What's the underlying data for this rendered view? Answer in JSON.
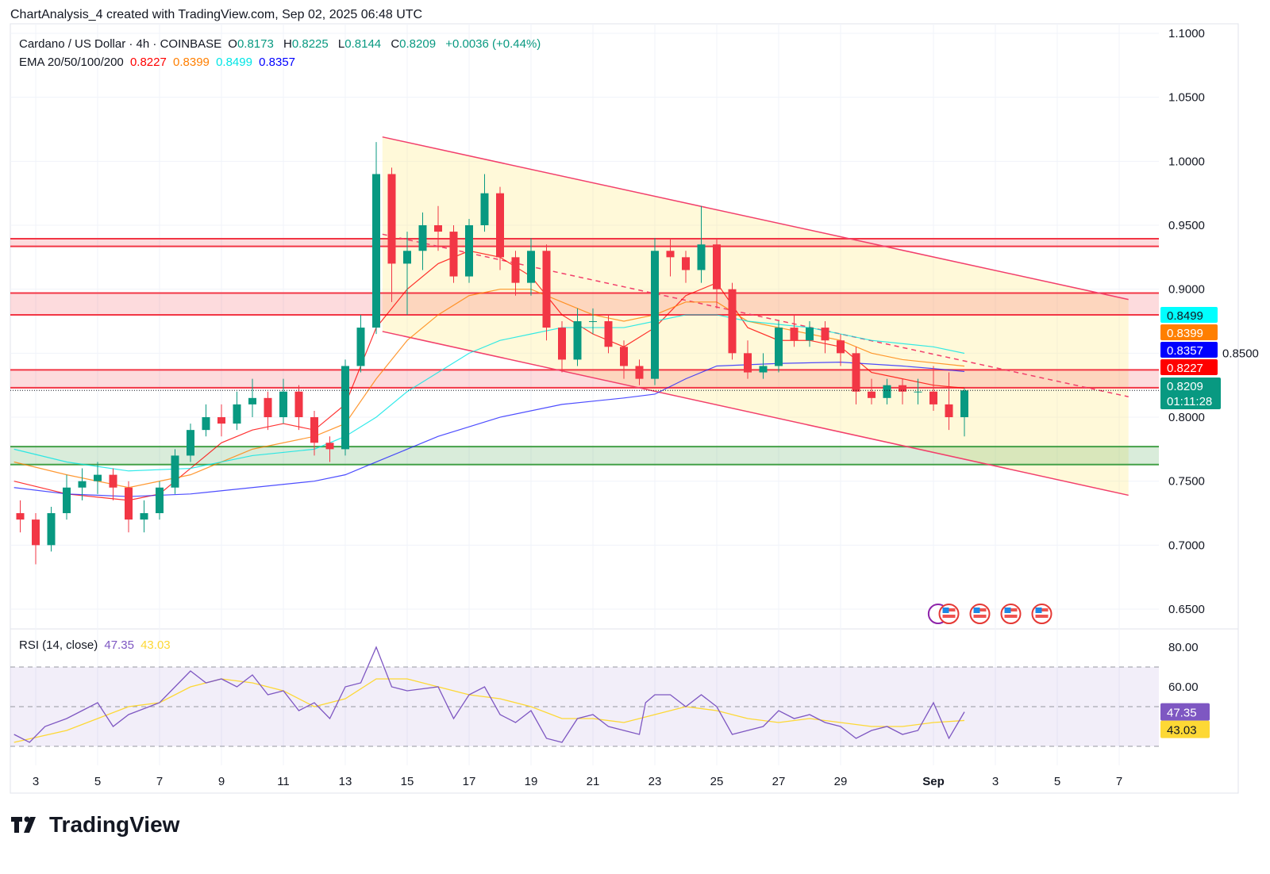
{
  "header": {
    "attribution": "ChartAnalysis_4 created with TradingView.com, Sep 02, 2025 06:48 UTC"
  },
  "legend": {
    "symbol": "Cardano / US Dollar · 4h · COINBASE",
    "o_label": "O",
    "o": "0.8173",
    "h_label": "H",
    "h": "0.8225",
    "l_label": "L",
    "l": "0.8144",
    "c_label": "C",
    "c": "0.8209",
    "change": "+0.0036 (+0.44%)",
    "ema_label": "EMA 20/50/100/200",
    "ema20": "0.8227",
    "ema50": "0.8399",
    "ema100": "0.8499",
    "ema200": "0.8357",
    "rsi_label": "RSI (14, close)",
    "rsi": "47.35",
    "rsi_ma": "43.03"
  },
  "colors": {
    "up": "#089981",
    "down": "#f23645",
    "ema20": "#ff0000",
    "ema50": "#ff7f00",
    "ema100": "#00ffff",
    "ema200": "#0000ff",
    "rsi": "#7e57c2",
    "rsi_ma": "#fdd835",
    "channel": "#f23f6b",
    "zone_red": "#f23645",
    "zone_green": "#43a047"
  },
  "branding": {
    "logo": "TradingView"
  },
  "chart_data": {
    "type": "candlestick",
    "title": "Cardano / US Dollar · 4h · COINBASE",
    "x_unit": "day of Aug 2025 (32 = Sep 1), 12h samples",
    "price_axis": {
      "ticks": [
        "1.1000",
        "1.0500",
        "1.0000",
        "0.9500",
        "0.9000",
        "0.8500",
        "0.8000",
        "0.7500",
        "0.7000",
        "0.6500"
      ],
      "range": [
        0.65,
        1.1
      ]
    },
    "time_axis": {
      "ticks": [
        {
          "d": 3,
          "label": "3"
        },
        {
          "d": 5,
          "label": "5"
        },
        {
          "d": 7,
          "label": "7"
        },
        {
          "d": 9,
          "label": "9"
        },
        {
          "d": 11,
          "label": "11"
        },
        {
          "d": 13,
          "label": "13"
        },
        {
          "d": 15,
          "label": "15"
        },
        {
          "d": 17,
          "label": "17"
        },
        {
          "d": 19,
          "label": "19"
        },
        {
          "d": 21,
          "label": "21"
        },
        {
          "d": 23,
          "label": "23"
        },
        {
          "d": 25,
          "label": "25"
        },
        {
          "d": 27,
          "label": "27"
        },
        {
          "d": 29,
          "label": "29"
        },
        {
          "d": 32,
          "label": "Sep"
        },
        {
          "d": 34,
          "label": "3"
        },
        {
          "d": 36,
          "label": "5"
        },
        {
          "d": 38,
          "label": "7"
        }
      ]
    },
    "candles": {
      "start_day": 2.5,
      "step_days": 0.5,
      "open": [
        0.725,
        0.72,
        0.7,
        0.725,
        0.745,
        0.75,
        0.755,
        0.745,
        0.72,
        0.725,
        0.745,
        0.77,
        0.79,
        0.8,
        0.795,
        0.81,
        0.815,
        0.8,
        0.82,
        0.8,
        0.78,
        0.775,
        0.84,
        0.87,
        0.99,
        0.92,
        0.93,
        0.95,
        0.945,
        0.91,
        0.95,
        0.975,
        0.925,
        0.905,
        0.93,
        0.87,
        0.845,
        0.875,
        0.875,
        0.855,
        0.84,
        0.83,
        0.93,
        0.925,
        0.915,
        0.935,
        0.9,
        0.85,
        0.835,
        0.84,
        0.87,
        0.86,
        0.87,
        0.86,
        0.85,
        0.82,
        0.815,
        0.825,
        0.82,
        0.82,
        0.81,
        0.8
      ],
      "high": [
        0.735,
        0.725,
        0.73,
        0.755,
        0.76,
        0.765,
        0.76,
        0.75,
        0.735,
        0.75,
        0.775,
        0.795,
        0.81,
        0.81,
        0.82,
        0.83,
        0.82,
        0.83,
        0.825,
        0.805,
        0.785,
        0.845,
        0.88,
        1.015,
        0.995,
        0.945,
        0.96,
        0.965,
        0.95,
        0.955,
        0.99,
        0.98,
        0.93,
        0.94,
        0.935,
        0.875,
        0.885,
        0.885,
        0.88,
        0.86,
        0.845,
        0.94,
        0.94,
        0.93,
        0.965,
        0.94,
        0.905,
        0.86,
        0.85,
        0.875,
        0.88,
        0.875,
        0.875,
        0.865,
        0.855,
        0.83,
        0.83,
        0.83,
        0.83,
        0.84,
        0.835,
        0.8225
      ],
      "low": [
        0.71,
        0.685,
        0.695,
        0.72,
        0.735,
        0.74,
        0.735,
        0.71,
        0.71,
        0.72,
        0.74,
        0.765,
        0.785,
        0.785,
        0.79,
        0.8,
        0.79,
        0.795,
        0.79,
        0.77,
        0.765,
        0.77,
        0.835,
        0.865,
        0.89,
        0.88,
        0.915,
        0.93,
        0.905,
        0.905,
        0.945,
        0.915,
        0.895,
        0.895,
        0.86,
        0.835,
        0.84,
        0.865,
        0.85,
        0.83,
        0.825,
        0.825,
        0.91,
        0.905,
        0.905,
        0.885,
        0.845,
        0.83,
        0.83,
        0.835,
        0.855,
        0.855,
        0.85,
        0.84,
        0.81,
        0.81,
        0.81,
        0.81,
        0.81,
        0.805,
        0.79,
        0.785
      ],
      "close": [
        0.72,
        0.7,
        0.725,
        0.745,
        0.75,
        0.755,
        0.745,
        0.72,
        0.725,
        0.745,
        0.77,
        0.79,
        0.8,
        0.795,
        0.81,
        0.815,
        0.8,
        0.82,
        0.8,
        0.78,
        0.775,
        0.84,
        0.87,
        0.99,
        0.92,
        0.93,
        0.95,
        0.945,
        0.91,
        0.95,
        0.975,
        0.925,
        0.905,
        0.93,
        0.87,
        0.845,
        0.875,
        0.875,
        0.855,
        0.84,
        0.83,
        0.93,
        0.925,
        0.915,
        0.935,
        0.9,
        0.85,
        0.835,
        0.84,
        0.87,
        0.86,
        0.87,
        0.86,
        0.85,
        0.82,
        0.815,
        0.825,
        0.82,
        0.82,
        0.81,
        0.8,
        0.8209
      ]
    },
    "ema": [
      {
        "name": "EMA 20",
        "color": "#ff0000",
        "points": [
          [
            2.3,
            0.75
          ],
          [
            4,
            0.74
          ],
          [
            6,
            0.735
          ],
          [
            7,
            0.74
          ],
          [
            8,
            0.76
          ],
          [
            9,
            0.78
          ],
          [
            10,
            0.79
          ],
          [
            11,
            0.795
          ],
          [
            12,
            0.79
          ],
          [
            13,
            0.81
          ],
          [
            14,
            0.87
          ],
          [
            15,
            0.9
          ],
          [
            16,
            0.92
          ],
          [
            17,
            0.93
          ],
          [
            18,
            0.925
          ],
          [
            19,
            0.91
          ],
          [
            20,
            0.88
          ],
          [
            21,
            0.865
          ],
          [
            22,
            0.855
          ],
          [
            23,
            0.87
          ],
          [
            24,
            0.895
          ],
          [
            25,
            0.905
          ],
          [
            26,
            0.87
          ],
          [
            27,
            0.86
          ],
          [
            28,
            0.86
          ],
          [
            29,
            0.855
          ],
          [
            30,
            0.835
          ],
          [
            31,
            0.83
          ],
          [
            32,
            0.825
          ],
          [
            33,
            0.8227
          ]
        ]
      },
      {
        "name": "EMA 50",
        "color": "#ff7f00",
        "points": [
          [
            2.3,
            0.765
          ],
          [
            4,
            0.755
          ],
          [
            6,
            0.745
          ],
          [
            8,
            0.755
          ],
          [
            10,
            0.775
          ],
          [
            12,
            0.785
          ],
          [
            13,
            0.795
          ],
          [
            14,
            0.83
          ],
          [
            15,
            0.86
          ],
          [
            16,
            0.88
          ],
          [
            17,
            0.895
          ],
          [
            18,
            0.9
          ],
          [
            19,
            0.9
          ],
          [
            20,
            0.89
          ],
          [
            21,
            0.88
          ],
          [
            22,
            0.875
          ],
          [
            23,
            0.88
          ],
          [
            24,
            0.89
          ],
          [
            25,
            0.89
          ],
          [
            26,
            0.875
          ],
          [
            27,
            0.87
          ],
          [
            28,
            0.865
          ],
          [
            29,
            0.86
          ],
          [
            30,
            0.85
          ],
          [
            31,
            0.845
          ],
          [
            33,
            0.8399
          ]
        ]
      },
      {
        "name": "EMA 100",
        "color": "#00e5e5",
        "points": [
          [
            2.3,
            0.775
          ],
          [
            4,
            0.765
          ],
          [
            6,
            0.758
          ],
          [
            8,
            0.76
          ],
          [
            10,
            0.77
          ],
          [
            12,
            0.775
          ],
          [
            13,
            0.785
          ],
          [
            14,
            0.8
          ],
          [
            15,
            0.82
          ],
          [
            16,
            0.835
          ],
          [
            17,
            0.85
          ],
          [
            18,
            0.86
          ],
          [
            19,
            0.865
          ],
          [
            20,
            0.87
          ],
          [
            21,
            0.87
          ],
          [
            22,
            0.87
          ],
          [
            23,
            0.875
          ],
          [
            24,
            0.88
          ],
          [
            25,
            0.88
          ],
          [
            26,
            0.875
          ],
          [
            28,
            0.87
          ],
          [
            30,
            0.86
          ],
          [
            32,
            0.855
          ],
          [
            33,
            0.8499
          ]
        ]
      },
      {
        "name": "EMA 200",
        "color": "#2020ff",
        "points": [
          [
            2.3,
            0.745
          ],
          [
            4,
            0.74
          ],
          [
            6,
            0.738
          ],
          [
            8,
            0.74
          ],
          [
            10,
            0.745
          ],
          [
            12,
            0.75
          ],
          [
            13,
            0.755
          ],
          [
            14,
            0.765
          ],
          [
            15,
            0.775
          ],
          [
            16,
            0.785
          ],
          [
            18,
            0.8
          ],
          [
            20,
            0.81
          ],
          [
            22,
            0.815
          ],
          [
            23,
            0.818
          ],
          [
            24,
            0.83
          ],
          [
            25,
            0.84
          ],
          [
            27,
            0.842
          ],
          [
            29,
            0.843
          ],
          [
            31,
            0.84
          ],
          [
            32,
            0.838
          ],
          [
            33,
            0.8357
          ]
        ]
      }
    ],
    "channel": {
      "upper": [
        [
          14.2,
          1.019
        ],
        [
          38.3,
          0.892
        ]
      ],
      "lower": [
        [
          14.2,
          0.867
        ],
        [
          38.3,
          0.739
        ]
      ],
      "mid": [
        [
          14.2,
          0.943
        ],
        [
          38.3,
          0.816
        ]
      ]
    },
    "zones": [
      {
        "type": "resistance",
        "top": 0.9395,
        "bottom": 0.9335,
        "color": "#f23645"
      },
      {
        "type": "resistance",
        "top": 0.897,
        "bottom": 0.88,
        "color": "#f23645"
      },
      {
        "type": "resistance",
        "top": 0.837,
        "bottom": 0.823,
        "color": "#f23645"
      },
      {
        "type": "support",
        "top": 0.777,
        "bottom": 0.763,
        "color": "#43a047"
      }
    ],
    "price_labels": [
      {
        "value": "0.8499",
        "bg": "#00ffff",
        "fg": "#131722",
        "v": 0.8499
      },
      {
        "value": "0.8399",
        "bg": "#ff7f00",
        "fg": "#ffffff",
        "v": 0.8399
      },
      {
        "value": "0.8357",
        "bg": "#0000ff",
        "fg": "#ffffff",
        "v": 0.8357
      },
      {
        "value": "0.8227",
        "bg": "#ff0000",
        "fg": "#ffffff",
        "v": 0.8227
      },
      {
        "value": "0.8209",
        "bg": "#089981",
        "fg": "#ffffff",
        "v": 0.8209,
        "countdown": "01:11:28"
      }
    ],
    "rsi": {
      "axis_ticks": [
        "80.00",
        "60.00"
      ],
      "range": [
        30,
        80
      ],
      "bands": [
        70,
        50,
        30
      ],
      "value_label": "47.35",
      "ma_label": "43.03",
      "series": [
        [
          2.3,
          36
        ],
        [
          2.8,
          32
        ],
        [
          3.3,
          40
        ],
        [
          4,
          44
        ],
        [
          4.5,
          48
        ],
        [
          5,
          52
        ],
        [
          5.5,
          40
        ],
        [
          6,
          46
        ],
        [
          7,
          52
        ],
        [
          7.5,
          60
        ],
        [
          8,
          68
        ],
        [
          8.5,
          62
        ],
        [
          9,
          64
        ],
        [
          9.5,
          60
        ],
        [
          10,
          66
        ],
        [
          10.5,
          56
        ],
        [
          11,
          58
        ],
        [
          11.5,
          48
        ],
        [
          12,
          52
        ],
        [
          12.5,
          44
        ],
        [
          13,
          60
        ],
        [
          13.5,
          62
        ],
        [
          14,
          80
        ],
        [
          14.5,
          60
        ],
        [
          15,
          58
        ],
        [
          16,
          60
        ],
        [
          16.5,
          44
        ],
        [
          17,
          56
        ],
        [
          17.5,
          60
        ],
        [
          18,
          46
        ],
        [
          18.5,
          42
        ],
        [
          19,
          48
        ],
        [
          19.5,
          34
        ],
        [
          20,
          32
        ],
        [
          20.5,
          44
        ],
        [
          21,
          46
        ],
        [
          21.5,
          40
        ],
        [
          22,
          38
        ],
        [
          22.5,
          36
        ],
        [
          22.7,
          52
        ],
        [
          23,
          56
        ],
        [
          23.5,
          56
        ],
        [
          24,
          50
        ],
        [
          24.5,
          56
        ],
        [
          25,
          50
        ],
        [
          25.5,
          36
        ],
        [
          26,
          38
        ],
        [
          26.5,
          40
        ],
        [
          27,
          48
        ],
        [
          27.5,
          44
        ],
        [
          28,
          46
        ],
        [
          28.5,
          42
        ],
        [
          29,
          40
        ],
        [
          29.5,
          34
        ],
        [
          30,
          38
        ],
        [
          30.5,
          40
        ],
        [
          31,
          36
        ],
        [
          31.5,
          38
        ],
        [
          32,
          52
        ],
        [
          32.5,
          34
        ],
        [
          33,
          47.35
        ]
      ],
      "ma": [
        [
          2.3,
          32
        ],
        [
          4,
          38
        ],
        [
          5,
          44
        ],
        [
          6,
          50
        ],
        [
          7,
          52
        ],
        [
          8,
          60
        ],
        [
          9,
          64
        ],
        [
          10,
          62
        ],
        [
          11,
          58
        ],
        [
          12,
          50
        ],
        [
          13,
          54
        ],
        [
          14,
          64
        ],
        [
          15,
          64
        ],
        [
          16,
          60
        ],
        [
          17,
          56
        ],
        [
          18,
          54
        ],
        [
          19,
          50
        ],
        [
          20,
          44
        ],
        [
          21,
          44
        ],
        [
          22,
          42
        ],
        [
          23,
          46
        ],
        [
          24,
          50
        ],
        [
          25,
          48
        ],
        [
          26,
          44
        ],
        [
          27,
          42
        ],
        [
          28,
          44
        ],
        [
          29,
          42
        ],
        [
          30,
          40
        ],
        [
          31,
          40
        ],
        [
          32,
          42
        ],
        [
          33,
          43.03
        ]
      ]
    },
    "events": [
      {
        "d": 32.15,
        "type": "other"
      },
      {
        "d": 32.5,
        "type": "us-flag"
      },
      {
        "d": 33.5,
        "type": "us-flag"
      },
      {
        "d": 34.5,
        "type": "us-flag"
      },
      {
        "d": 35.5,
        "type": "us-flag"
      }
    ]
  }
}
